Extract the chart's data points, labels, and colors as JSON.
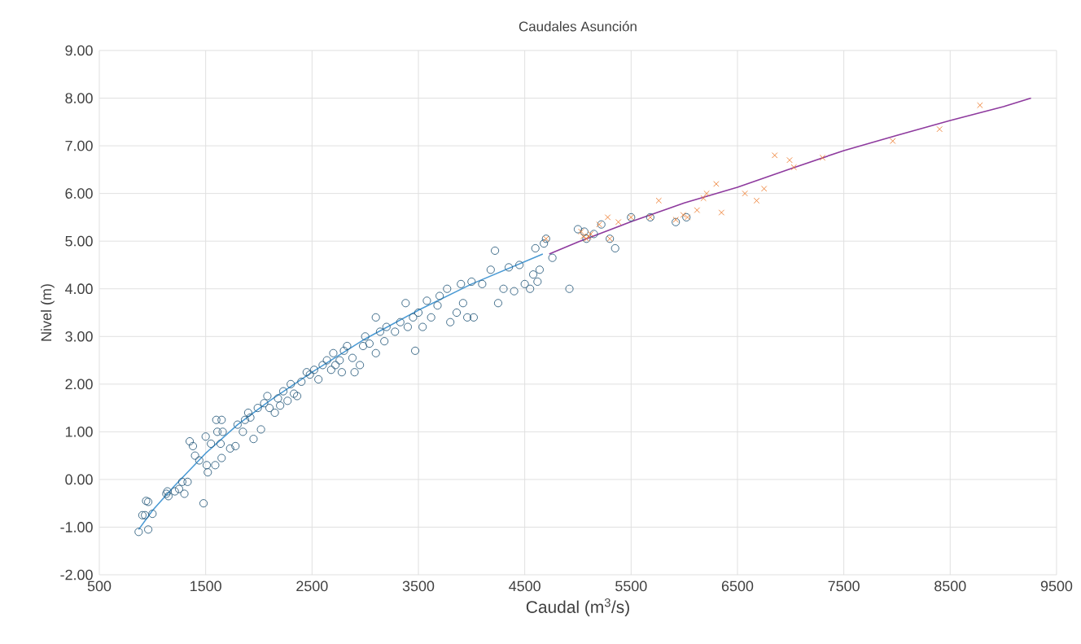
{
  "chart_data": {
    "type": "scatter",
    "title": "Caudales Asunción",
    "xlabel": "Caudal (m$^{3}$/s)",
    "ylabel": "Nivel (m)",
    "xlim": [
      500,
      9500
    ],
    "xticks": [
      500,
      1500,
      2500,
      3500,
      4500,
      5500,
      6500,
      7500,
      8500,
      9500
    ],
    "ylim": [
      -2,
      9
    ],
    "yticks": [
      {
        "value": -2,
        "label": "-2.00"
      },
      {
        "value": -1,
        "label": "-1.00"
      },
      {
        "value": 0,
        "label": "0.00"
      },
      {
        "value": 1,
        "label": "1.00"
      },
      {
        "value": 2,
        "label": "2.00"
      },
      {
        "value": 3,
        "label": "3.00"
      },
      {
        "value": 4,
        "label": "4.00"
      },
      {
        "value": 5,
        "label": "5.00"
      },
      {
        "value": 6,
        "label": "6.00"
      },
      {
        "value": 7,
        "label": "7.00"
      },
      {
        "value": 8,
        "label": "8.00"
      },
      {
        "value": 9,
        "label": "9.00"
      }
    ],
    "grid": true,
    "series": [
      {
        "marker": "circle",
        "color": "#2e5f80",
        "x": [
          870,
          905,
          930,
          960,
          940,
          960,
          1000,
          1130,
          1140,
          1150,
          1210,
          1250,
          1280,
          1300,
          1330,
          1350,
          1380,
          1400,
          1440,
          1480,
          1500,
          1510,
          1520,
          1550,
          1600,
          1610,
          1640,
          1650,
          1660,
          1650,
          1590,
          1730,
          1780,
          1800,
          1850,
          1870,
          1900,
          1920,
          1950,
          1990,
          2020,
          2050,
          2080,
          2100,
          2150,
          2180,
          2200,
          2230,
          2270,
          2300,
          2330,
          2360,
          2400,
          2450,
          2480,
          2520,
          2560,
          2600,
          2640,
          2680,
          2700,
          2720,
          2760,
          2780,
          2800,
          2830,
          2880,
          2900,
          2950,
          2980,
          3000,
          3040,
          3100,
          3100,
          3140,
          3180,
          3200,
          3280,
          3330,
          3380,
          3400,
          3450,
          3470,
          3500,
          3540,
          3580,
          3620,
          3680,
          3700,
          3770,
          3800,
          3860,
          3900,
          3920,
          3960,
          4000,
          4020,
          4100,
          4180,
          4220,
          4250,
          4300,
          4350,
          4400,
          4450,
          4500,
          4550,
          4580,
          4600,
          4620,
          4640,
          4680,
          4760,
          4920,
          5060,
          5350,
          5080,
          5300,
          5000,
          5150,
          5220,
          5500,
          5680,
          5920,
          6020,
          4700
        ],
        "values": [
          -1.1,
          -0.75,
          -0.75,
          -1.05,
          -0.45,
          -0.47,
          -0.72,
          -0.3,
          -0.25,
          -0.35,
          -0.25,
          -0.2,
          -0.05,
          -0.3,
          -0.05,
          0.8,
          0.7,
          0.5,
          0.4,
          -0.5,
          0.9,
          0.3,
          0.15,
          0.75,
          1.25,
          1.0,
          0.75,
          1.25,
          1.0,
          0.45,
          0.3,
          0.65,
          0.7,
          1.15,
          1.0,
          1.25,
          1.4,
          1.3,
          0.85,
          1.5,
          1.05,
          1.6,
          1.75,
          1.5,
          1.4,
          1.7,
          1.55,
          1.85,
          1.65,
          2.0,
          1.8,
          1.75,
          2.05,
          2.25,
          2.2,
          2.3,
          2.1,
          2.4,
          2.5,
          2.3,
          2.65,
          2.4,
          2.5,
          2.25,
          2.7,
          2.8,
          2.55,
          2.25,
          2.4,
          2.8,
          3.0,
          2.85,
          3.4,
          2.65,
          3.1,
          2.9,
          3.2,
          3.1,
          3.3,
          3.7,
          3.2,
          3.4,
          2.7,
          3.5,
          3.2,
          3.75,
          3.4,
          3.65,
          3.85,
          4.0,
          3.3,
          3.5,
          4.1,
          3.7,
          3.4,
          4.15,
          3.4,
          4.1,
          4.4,
          4.8,
          3.7,
          4.0,
          4.45,
          3.95,
          4.5,
          4.1,
          4.0,
          4.3,
          4.85,
          4.15,
          4.4,
          4.95,
          4.65,
          4.0,
          5.2,
          4.85,
          5.05,
          5.05,
          5.25,
          5.15,
          5.35,
          5.5,
          5.5,
          5.4,
          5.5,
          5.05
        ]
      },
      {
        "marker": "cross",
        "color": "#ed7d31",
        "x": [
          4700,
          5030,
          5050,
          5080,
          5100,
          5120,
          5200,
          5280,
          5300,
          5380,
          5500,
          5680,
          5760,
          5920,
          5990,
          6030,
          6120,
          6180,
          6210,
          6300,
          6350,
          6570,
          6680,
          6750,
          6850,
          6990,
          7030,
          7300,
          7960,
          8400,
          8780
        ],
        "values": [
          5.05,
          5.2,
          5.1,
          5.05,
          5.1,
          5.15,
          5.35,
          5.5,
          5.05,
          5.4,
          5.5,
          5.5,
          5.85,
          5.45,
          5.55,
          5.5,
          5.65,
          5.9,
          6.0,
          6.2,
          5.6,
          6.0,
          5.85,
          6.1,
          6.8,
          6.7,
          6.55,
          6.75,
          7.1,
          7.35,
          7.85
        ]
      },
      {
        "type": "line",
        "marker": "none",
        "line_style": "solid",
        "color": "#4a9ad4",
        "x": [
          870,
          1000,
          1200,
          1500,
          1800,
          2100,
          2500,
          3000,
          3500,
          4000,
          4670
        ],
        "values": [
          -1.05,
          -0.65,
          -0.15,
          0.55,
          1.15,
          1.65,
          2.25,
          2.95,
          3.55,
          4.1,
          4.73
        ]
      },
      {
        "type": "line",
        "marker": "none",
        "line_style": "solid",
        "color": "#8e3a9e",
        "x": [
          4730,
          5000,
          5500,
          6000,
          6500,
          7000,
          7500,
          8000,
          8500,
          9000,
          9260
        ],
        "values": [
          4.73,
          4.98,
          5.41,
          5.8,
          6.13,
          6.52,
          6.9,
          7.22,
          7.53,
          7.82,
          8.0
        ]
      }
    ]
  }
}
